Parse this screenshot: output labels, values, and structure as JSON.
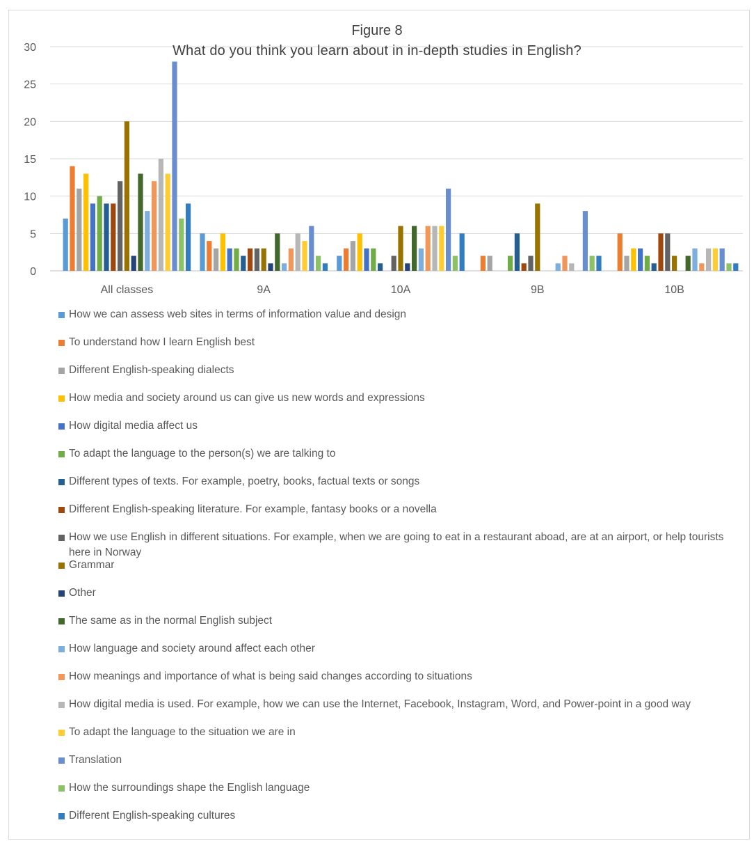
{
  "chart_data": {
    "type": "bar",
    "title": "Figure 8",
    "subtitle": "What do you think you learn about in in-depth studies in English?",
    "xlabel": "",
    "ylabel": "",
    "ylim": [
      0,
      30
    ],
    "yticks": [
      0,
      5,
      10,
      15,
      20,
      25,
      30
    ],
    "grid": true,
    "legend_position": "bottom",
    "categories": [
      "All classes",
      "9A",
      "10A",
      "9B",
      "10B"
    ],
    "series": [
      {
        "name": "How we can assess web sites in terms of information value and design",
        "color": "#5b9bd5",
        "values": [
          7,
          5,
          2,
          0,
          0
        ]
      },
      {
        "name": "To understand how I learn English best",
        "color": "#ed7d31",
        "values": [
          14,
          4,
          3,
          2,
          5
        ]
      },
      {
        "name": "Different English-speaking dialects",
        "color": "#a5a5a5",
        "values": [
          11,
          3,
          4,
          2,
          2
        ]
      },
      {
        "name": "How media and society around us can give us new words and expressions",
        "color": "#ffc000",
        "values": [
          13,
          5,
          5,
          0,
          3
        ]
      },
      {
        "name": "How digital media affect us",
        "color": "#4472c4",
        "values": [
          9,
          3,
          3,
          0,
          3
        ]
      },
      {
        "name": "To adapt the language to the person(s) we are talking to",
        "color": "#70ad47",
        "values": [
          10,
          3,
          3,
          2,
          2
        ]
      },
      {
        "name": "Different types of texts. For example, poetry, books, factual texts or songs",
        "color": "#255e91",
        "values": [
          9,
          2,
          1,
          5,
          1
        ]
      },
      {
        "name": "Different English-speaking literature. For example, fantasy books or a novella",
        "color": "#9e480e",
        "values": [
          9,
          3,
          0,
          1,
          5
        ]
      },
      {
        "name": "How we use English in different situations. For example, when we are going to eat in a restaurant aboad, are at an airport, or help tourists here in Norway",
        "color": "#636363",
        "values": [
          12,
          3,
          2,
          2,
          5
        ]
      },
      {
        "name": "Grammar",
        "color": "#997300",
        "values": [
          20,
          3,
          6,
          9,
          2
        ]
      },
      {
        "name": "Other",
        "color": "#264478",
        "values": [
          2,
          1,
          1,
          0,
          0
        ]
      },
      {
        "name": "The same as in the normal English subject",
        "color": "#43682b",
        "values": [
          13,
          5,
          6,
          0,
          2
        ]
      },
      {
        "name": "How language and society around affect each other",
        "color": "#7cafdd",
        "values": [
          8,
          1,
          3,
          1,
          3
        ]
      },
      {
        "name": "How meanings and importance of what is being said changes according to situations",
        "color": "#f1975a",
        "values": [
          12,
          3,
          6,
          2,
          1
        ]
      },
      {
        "name": "How digital media is used. For example, how we can use the Internet, Facebook, Instagram, Word, and Power-point in a good way",
        "color": "#b7b7b7",
        "values": [
          15,
          5,
          6,
          1,
          3
        ]
      },
      {
        "name": "To adapt the language to the situation we are in",
        "color": "#ffcd33",
        "values": [
          13,
          4,
          6,
          0,
          3
        ]
      },
      {
        "name": "Translation",
        "color": "#698ed0",
        "values": [
          28,
          6,
          11,
          8,
          3
        ]
      },
      {
        "name": "How the surroundings shape the English language",
        "color": "#8cc168",
        "values": [
          7,
          2,
          2,
          2,
          1
        ]
      },
      {
        "name": "Different English-speaking cultures",
        "color": "#327dc2",
        "values": [
          9,
          1,
          5,
          2,
          1
        ]
      }
    ]
  }
}
